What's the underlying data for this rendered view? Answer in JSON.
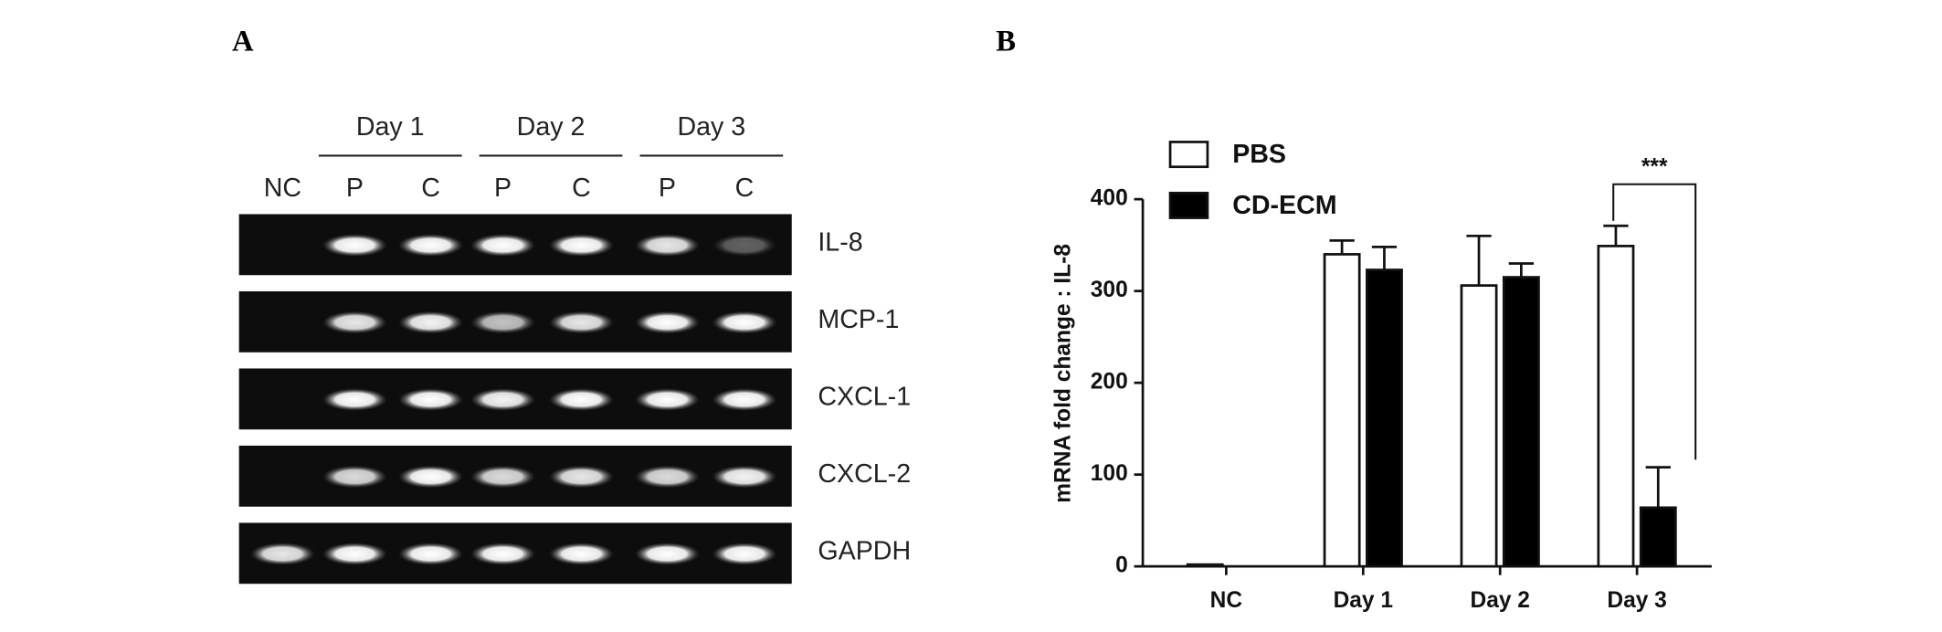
{
  "panel_labels": [
    "A",
    "B"
  ],
  "gel": {
    "groups": [
      "Day 1",
      "Day 2",
      "Day 3"
    ],
    "lanes": [
      "NC",
      "P",
      "C",
      "P",
      "C",
      "P",
      "C"
    ],
    "rows": [
      "IL-8",
      "MCP-1",
      "CXCL-1",
      "CXCL-2",
      "GAPDH"
    ]
  },
  "chart_data": {
    "type": "bar",
    "y_label": "mRNA fold change : IL-8",
    "categories": [
      "NC",
      "Day 1",
      "Day 2",
      "Day 3"
    ],
    "series": [
      {
        "name": "PBS",
        "color": "#ffffff",
        "values": [
          2,
          340,
          306,
          349
        ],
        "errors": [
          0,
          15,
          54,
          22
        ]
      },
      {
        "name": "CD-ECM",
        "color": "#000000",
        "values": [
          null,
          323,
          315,
          64
        ],
        "errors": [
          null,
          25,
          15,
          44
        ]
      }
    ],
    "ylim": [
      0,
      400
    ],
    "yticks": [
      0,
      100,
      200,
      300,
      400
    ],
    "annotation": "***",
    "legend": "upper left"
  }
}
